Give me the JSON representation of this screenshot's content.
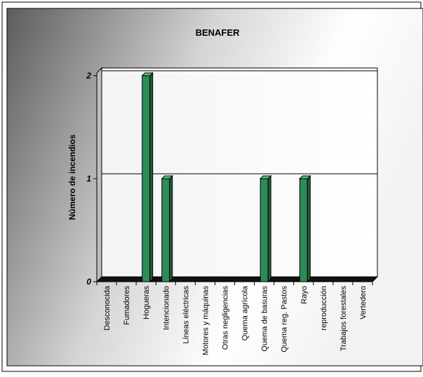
{
  "chart_data": {
    "type": "bar",
    "title": "BENAFER",
    "xlabel": "",
    "ylabel": "Número de incendios",
    "categories": [
      "Desconocida",
      "Fumadores",
      "Hogueras",
      "Intencionado",
      "Líneas eléctricas",
      "Motores y máquinas",
      "Otras negligencias",
      "Quema agrícola",
      "Quema de basuras",
      "Quema reg. Pastos",
      "Rayo",
      "reproducción",
      "Trabajos forestales",
      "Vertedero"
    ],
    "values": [
      0,
      0,
      2,
      1,
      0,
      0,
      0,
      0,
      1,
      0,
      1,
      0,
      0,
      0
    ],
    "yticks": [
      "0",
      "1",
      "2"
    ],
    "ylim": [
      0,
      2
    ],
    "grid": true,
    "legend": "none",
    "bar_color": "#2e8b57"
  }
}
